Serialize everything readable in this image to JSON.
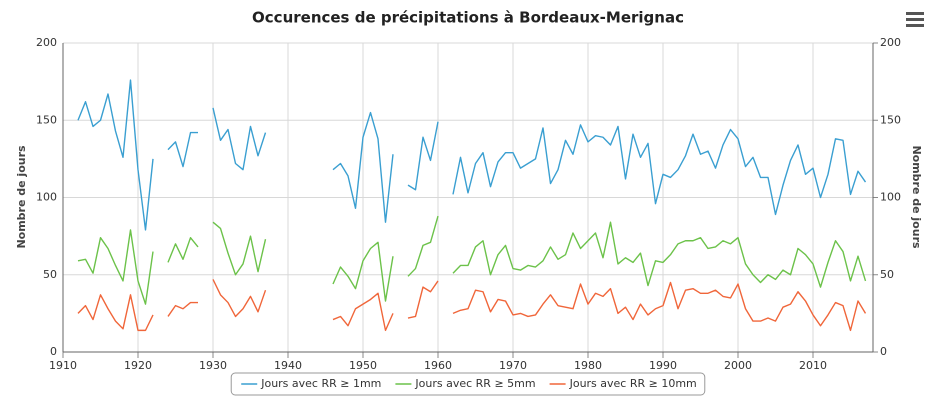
{
  "chart_data": {
    "type": "line",
    "title": "Occurences de précipitations à Bordeaux-Merignac",
    "y_label": "Nombre de jours",
    "y2_label": "Nombre de jours",
    "x": [
      1912,
      1913,
      1914,
      1915,
      1916,
      1917,
      1918,
      1919,
      1920,
      1921,
      1922,
      1923,
      1924,
      1925,
      1926,
      1927,
      1928,
      1929,
      1930,
      1931,
      1932,
      1933,
      1934,
      1935,
      1936,
      1937,
      1938,
      1939,
      1940,
      1941,
      1942,
      1943,
      1944,
      1945,
      1946,
      1947,
      1948,
      1949,
      1950,
      1951,
      1952,
      1953,
      1954,
      1955,
      1956,
      1957,
      1958,
      1959,
      1960,
      1961,
      1962,
      1963,
      1964,
      1965,
      1966,
      1967,
      1968,
      1969,
      1970,
      1971,
      1972,
      1973,
      1974,
      1975,
      1976,
      1977,
      1978,
      1979,
      1980,
      1981,
      1982,
      1983,
      1984,
      1985,
      1986,
      1987,
      1988,
      1989,
      1990,
      1991,
      1992,
      1993,
      1994,
      1995,
      1996,
      1997,
      1998,
      1999,
      2000,
      2001,
      2002,
      2003,
      2004,
      2005,
      2006,
      2007,
      2008,
      2009,
      2010,
      2011,
      2012,
      2013,
      2014,
      2015,
      2016,
      2017
    ],
    "series": [
      {
        "name": "Jours avec RR ≥ 1mm",
        "color": "#3a9fd1",
        "values": [
          150,
          162,
          146,
          150,
          167,
          143,
          126,
          176,
          118,
          79,
          125,
          null,
          131,
          136,
          120,
          142,
          142,
          null,
          158,
          137,
          144,
          122,
          118,
          146,
          127,
          142,
          null,
          null,
          null,
          null,
          null,
          null,
          null,
          null,
          118,
          122,
          114,
          93,
          139,
          155,
          138,
          84,
          128,
          null,
          108,
          105,
          139,
          124,
          149,
          null,
          102,
          126,
          103,
          122,
          129,
          107,
          123,
          129,
          129,
          119,
          122,
          125,
          145,
          109,
          118,
          137,
          128,
          147,
          136,
          140,
          139,
          134,
          146,
          112,
          141,
          126,
          135,
          96,
          115,
          113,
          118,
          127,
          141,
          128,
          130,
          119,
          134,
          144,
          138,
          120,
          126,
          113,
          113,
          89,
          108,
          124,
          134,
          115,
          119,
          100,
          115,
          138,
          137,
          102,
          117,
          110
        ]
      },
      {
        "name": "Jours avec RR ≥ 5mm",
        "color": "#6cc24a",
        "values": [
          59,
          60,
          51,
          74,
          67,
          56,
          46,
          79,
          46,
          31,
          65,
          null,
          58,
          70,
          60,
          74,
          68,
          null,
          84,
          80,
          64,
          50,
          57,
          75,
          52,
          73,
          null,
          null,
          null,
          null,
          null,
          null,
          null,
          null,
          44,
          55,
          49,
          41,
          59,
          67,
          71,
          33,
          62,
          null,
          49,
          54,
          69,
          71,
          88,
          null,
          51,
          56,
          56,
          68,
          72,
          50,
          63,
          69,
          54,
          53,
          56,
          55,
          59,
          68,
          60,
          63,
          77,
          67,
          72,
          77,
          61,
          84,
          57,
          61,
          58,
          64,
          43,
          59,
          58,
          63,
          70,
          72,
          72,
          74,
          67,
          68,
          72,
          70,
          74,
          57,
          50,
          45,
          50,
          47,
          53,
          50,
          67,
          63,
          57,
          42,
          58,
          72,
          65,
          46,
          62,
          46
        ]
      },
      {
        "name": "Jours avec RR ≥ 10mm",
        "color": "#f0663a",
        "values": [
          25,
          30,
          21,
          37,
          28,
          20,
          15,
          37,
          14,
          14,
          24,
          null,
          23,
          30,
          28,
          32,
          32,
          null,
          47,
          37,
          32,
          23,
          28,
          36,
          26,
          40,
          null,
          null,
          null,
          null,
          null,
          null,
          null,
          null,
          21,
          23,
          17,
          28,
          31,
          34,
          38,
          14,
          25,
          null,
          22,
          23,
          42,
          39,
          46,
          null,
          25,
          27,
          28,
          40,
          39,
          26,
          34,
          33,
          24,
          25,
          23,
          24,
          31,
          37,
          30,
          29,
          28,
          44,
          31,
          38,
          36,
          41,
          25,
          29,
          21,
          31,
          24,
          28,
          30,
          45,
          28,
          40,
          41,
          38,
          38,
          40,
          36,
          35,
          44,
          28,
          20,
          20,
          22,
          20,
          29,
          31,
          39,
          33,
          24,
          17,
          24,
          32,
          30,
          14,
          33,
          25
        ]
      }
    ],
    "xlim": [
      1910,
      2018
    ],
    "xticks": [
      1910,
      1920,
      1930,
      1940,
      1950,
      1960,
      1970,
      1980,
      1990,
      2000,
      2010
    ],
    "ylim": [
      0,
      200
    ],
    "yticks": [
      0,
      50,
      100,
      150,
      200
    ],
    "y2lim": [
      0,
      200
    ],
    "y2ticks": [
      0,
      50,
      100,
      150,
      200
    ],
    "grid": true,
    "legend": "bottom"
  }
}
